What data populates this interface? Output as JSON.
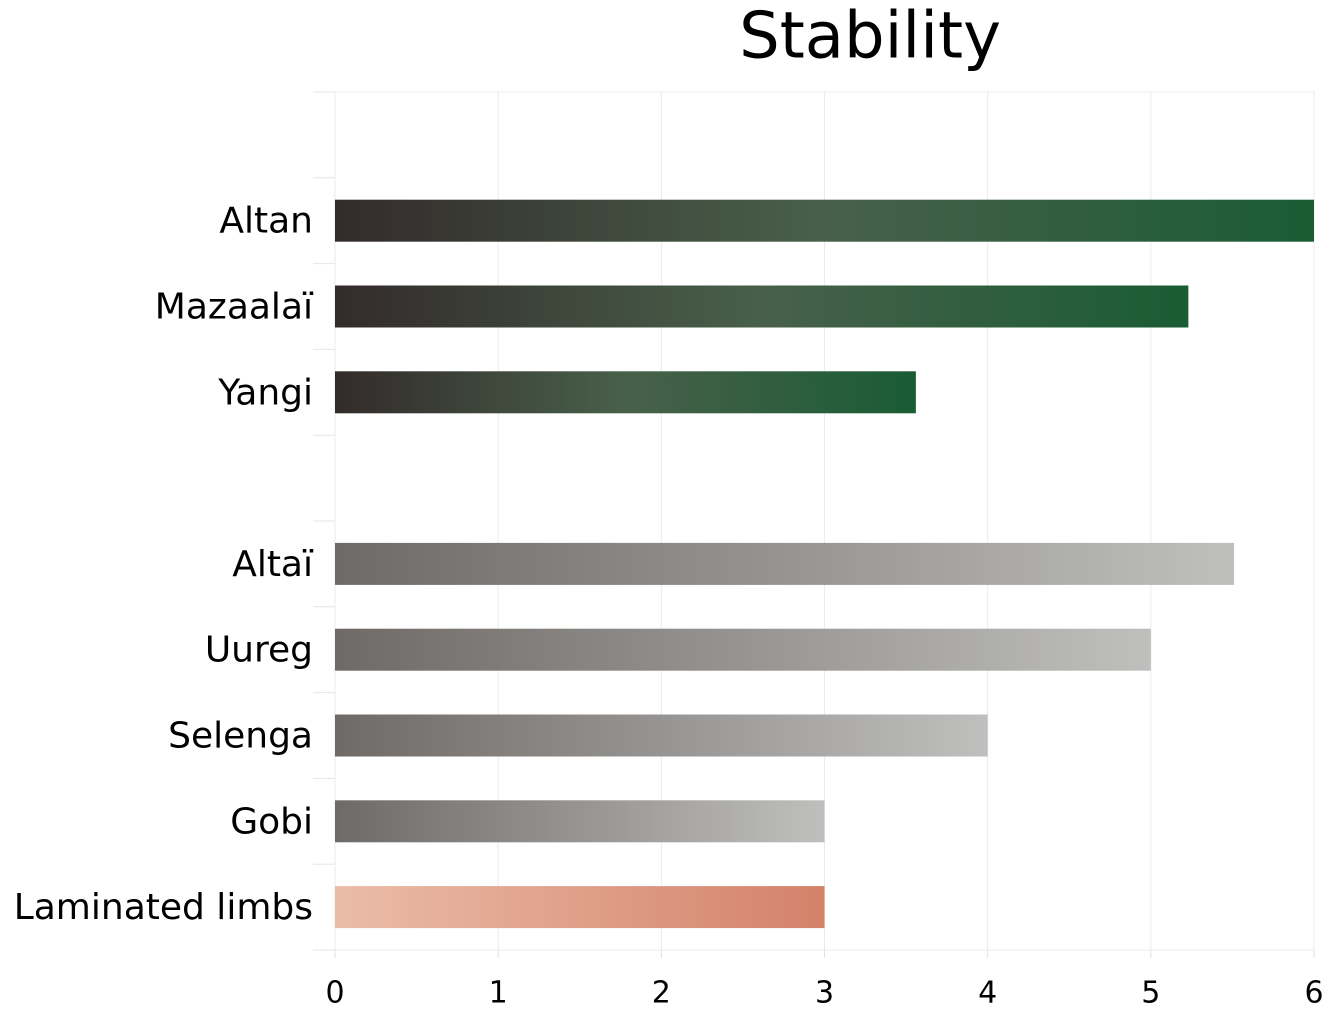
{
  "chart_data": {
    "type": "bar",
    "orientation": "horizontal",
    "title": "Stability",
    "categories": [
      null,
      "Altan",
      "Mazaalaï",
      "Yangi",
      null,
      "Altaï",
      "Uureg",
      "Selenga",
      "Gobi",
      "Laminated limbs"
    ],
    "values": [
      null,
      6.0,
      5.23,
      3.56,
      null,
      5.51,
      5.0,
      4.0,
      3.0,
      3.0
    ],
    "colors": [
      null,
      [
        "#332b2b",
        "#48604a",
        "#1a5c34"
      ],
      [
        "#332b2b",
        "#48604a",
        "#1a5c34"
      ],
      [
        "#332b2b",
        "#48604a",
        "#1a5c34"
      ],
      null,
      [
        "#6e6a68",
        "#bfbfbd"
      ],
      [
        "#6e6a68",
        "#bfbfbd"
      ],
      [
        "#6e6a68",
        "#bfbfbd"
      ],
      [
        "#6e6a68",
        "#bfbfbd"
      ],
      [
        "#eabca8",
        "#d4826a"
      ]
    ],
    "xlim": [
      0,
      6
    ],
    "xticks": [
      0,
      1,
      2,
      3,
      4,
      5,
      6
    ],
    "grid": true
  }
}
